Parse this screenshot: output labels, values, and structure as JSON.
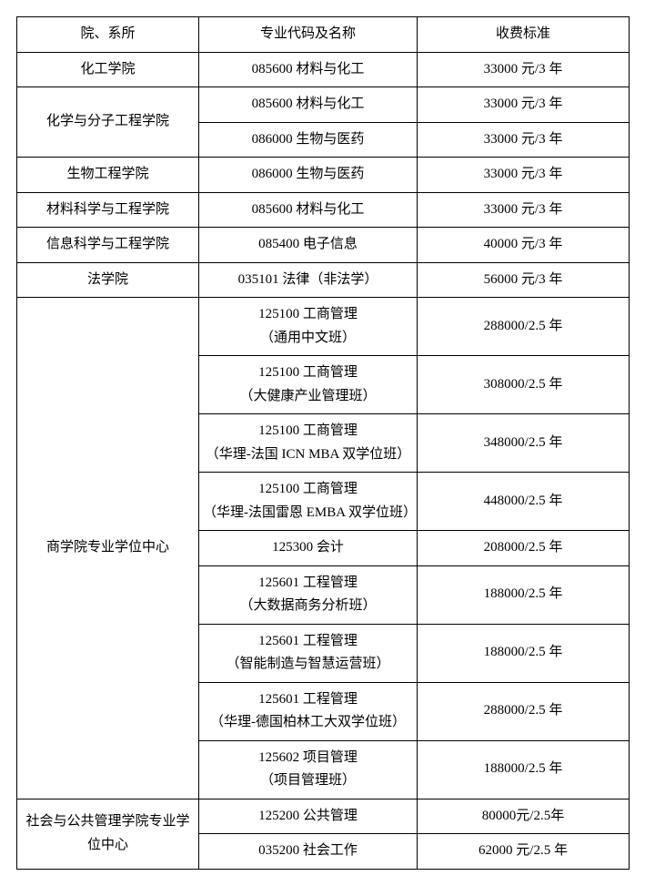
{
  "header": {
    "col1": "院、系所",
    "col2": "专业代码及名称",
    "col3": "收费标准"
  },
  "rows": [
    {
      "dept": "化工学院",
      "deptRowspan": 1,
      "major": "085600 材料与化工",
      "fee": "33000 元/3 年"
    },
    {
      "dept": "化学与分子工程学院",
      "deptRowspan": 2,
      "major": "085600 材料与化工",
      "fee": "33000 元/3 年"
    },
    {
      "major": "086000 生物与医药",
      "fee": "33000 元/3 年"
    },
    {
      "dept": "生物工程学院",
      "deptRowspan": 1,
      "major": "086000 生物与医药",
      "fee": "33000 元/3 年"
    },
    {
      "dept": "材料科学与工程学院",
      "deptRowspan": 1,
      "major": "085600 材料与化工",
      "fee": "33000 元/3 年"
    },
    {
      "dept": "信息科学与工程学院",
      "deptRowspan": 1,
      "major": "085400 电子信息",
      "fee": "40000 元/3 年"
    },
    {
      "dept": "法学院",
      "deptRowspan": 1,
      "major": "035101 法律（非法学）",
      "fee": "56000 元/3 年"
    },
    {
      "dept": "商学院专业学位中心",
      "deptRowspan": 9,
      "major": "125100 工商管理\n（通用中文班）",
      "fee": "288000/2.5 年"
    },
    {
      "major": "125100 工商管理\n（大健康产业管理班）",
      "fee": "308000/2.5 年"
    },
    {
      "major": "125100 工商管理\n（华理-法国 ICN MBA 双学位班）",
      "fee": "348000/2.5 年"
    },
    {
      "major": "125100 工商管理\n（华理-法国雷恩 EMBA 双学位班）",
      "fee": "448000/2.5 年"
    },
    {
      "major": "125300 会计",
      "fee": "208000/2.5 年"
    },
    {
      "major": "125601 工程管理\n（大数据商务分析班）",
      "fee": "188000/2.5 年"
    },
    {
      "major": "125601 工程管理\n（智能制造与智慧运营班）",
      "fee": "188000/2.5 年"
    },
    {
      "major": "125601 工程管理\n（华理-德国柏林工大双学位班）",
      "fee": "288000/2.5 年"
    },
    {
      "major": "125602 项目管理\n（项目管理班）",
      "fee": "188000/2.5 年"
    },
    {
      "dept": "社会与公共管理学院专业学位中心",
      "deptRowspan": 2,
      "major": "125200 公共管理",
      "fee": "80000元/2.5年"
    },
    {
      "major": "035200 社会工作",
      "fee": "62000 元/2.5 年"
    }
  ]
}
